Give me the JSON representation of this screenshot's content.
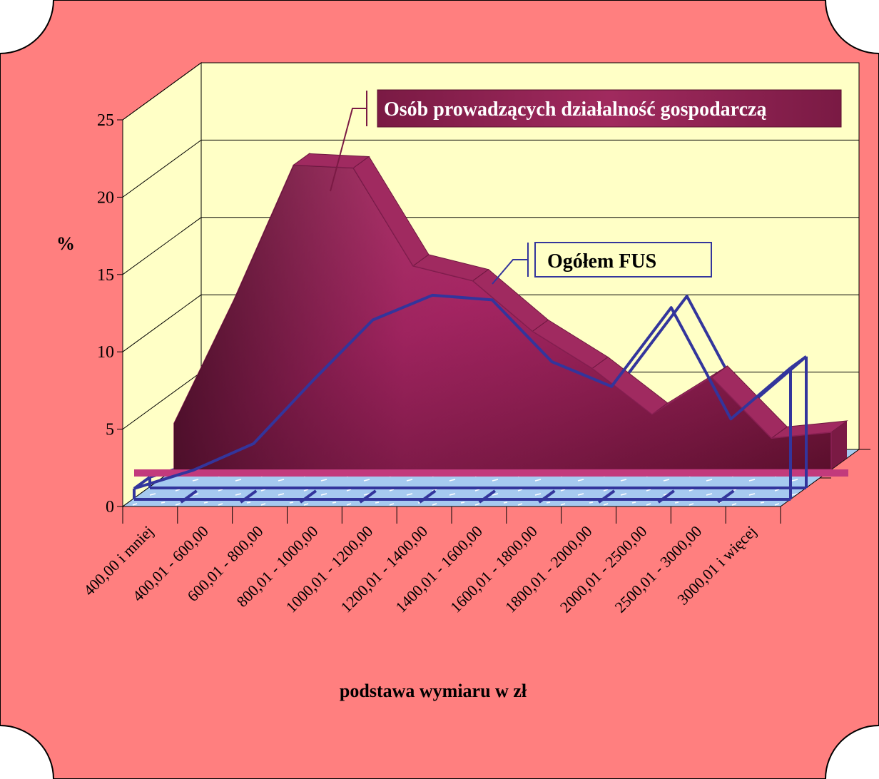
{
  "chart_data": {
    "type": "area",
    "title": "",
    "xlabel": "podstawa wymiaru w zł",
    "ylabel": "%",
    "ylim": [
      0,
      25
    ],
    "yticks": [
      0,
      5,
      10,
      15,
      20,
      25
    ],
    "grid": true,
    "categories": [
      "400,00 i mniej",
      "400,01 - 600,00",
      "600,01 - 800,00",
      "800,01 - 1000,00",
      "1000,01 - 1200,00",
      "1200,01 - 1400,00",
      "1400,01 - 1600,00",
      "1600,01 - 1800,00",
      "1800,01 - 2000,00",
      "2000,01 - 2500,00",
      "2500,01 - 3000,00",
      "3000,01 i więcej"
    ],
    "series": [
      {
        "name": "Osób prowadzących działalność gospodarczą",
        "style": "area",
        "color": "#b02a6a",
        "values": [
          3.1,
          11.4,
          20.5,
          20.3,
          13.7,
          12.7,
          9.3,
          6.8,
          3.7,
          6.2,
          2.1,
          2.5
        ]
      },
      {
        "name": "Ogółem FUS",
        "style": "ribbon",
        "color": "#33359c",
        "values": [
          0.7,
          1.9,
          3.6,
          7.7,
          11.6,
          13.2,
          12.9,
          8.9,
          7.3,
          12.4,
          5.2,
          8.5
        ]
      }
    ],
    "legend": {
      "series1_label": "Osób prowadzących działalność gospodarczą",
      "series2_label": "Ogółem FUS"
    },
    "colors": {
      "background": "#ff7f7f",
      "plot_back": "#ffffc6",
      "floor": "#a6caf0",
      "area": "#b02a6a",
      "line": "#33359c",
      "label_box": "#8a1e4e"
    }
  }
}
